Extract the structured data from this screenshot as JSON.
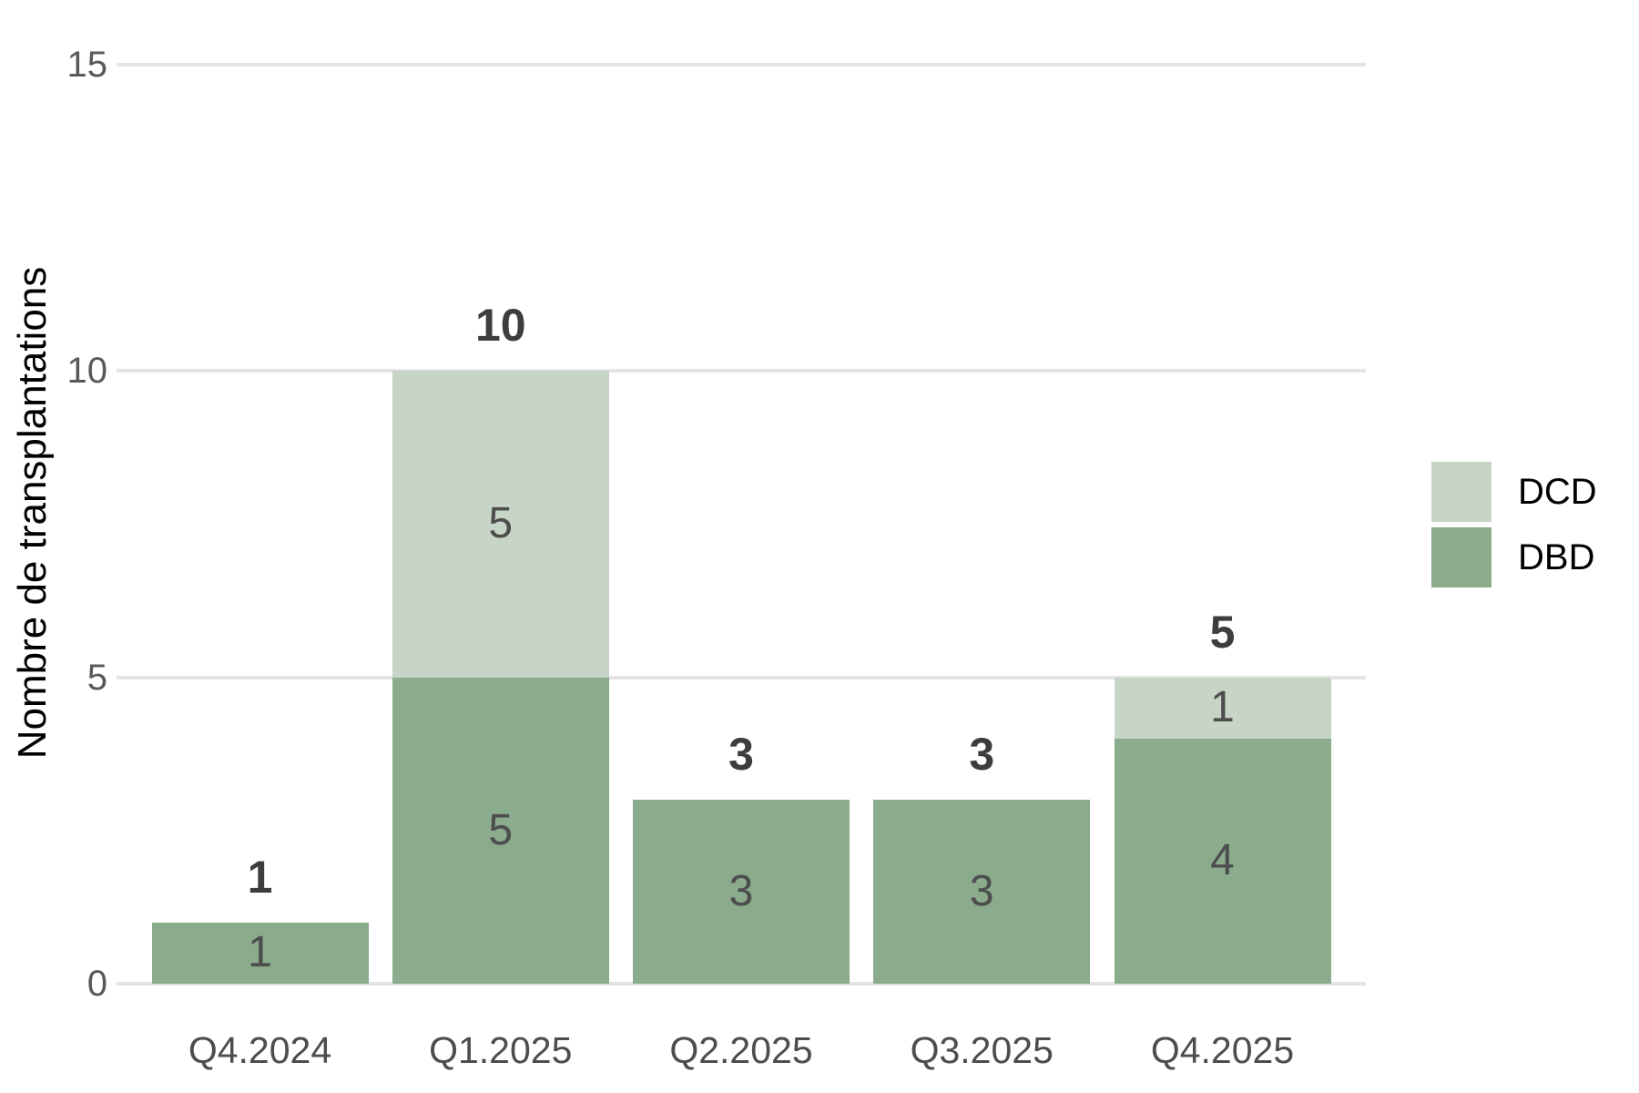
{
  "chart_data": {
    "type": "bar",
    "stacked": true,
    "title": "",
    "xlabel": "",
    "ylabel": "Nombre de transplantations",
    "categories": [
      "Q4.2024",
      "Q1.2025",
      "Q2.2025",
      "Q3.2025",
      "Q4.2025"
    ],
    "series": [
      {
        "name": "DBD",
        "color": "#8aab8c",
        "values": [
          1,
          5,
          3,
          3,
          4
        ]
      },
      {
        "name": "DCD",
        "color": "#c7d5c6",
        "values": [
          0,
          5,
          0,
          0,
          1
        ]
      }
    ],
    "totals": [
      1,
      10,
      3,
      3,
      5
    ],
    "y_ticks": [
      0,
      5,
      10,
      15
    ],
    "ylim": [
      0,
      15
    ],
    "grid": "horizontal",
    "legend": {
      "position": "right",
      "entries": [
        "DCD",
        "DBD"
      ]
    }
  },
  "colors": {
    "background": "#ffffff",
    "gridline": "#e4e4e4",
    "y_tick_text": "#595959",
    "x_tick_text": "#4d4d4d",
    "segment_label_text": "#4d4d4d",
    "total_label_text": "#3d3d3d",
    "axis_title_text": "#000000",
    "legend_text": "#000000",
    "dbd": "#8aab8c",
    "dcd": "#c7d5c6"
  }
}
